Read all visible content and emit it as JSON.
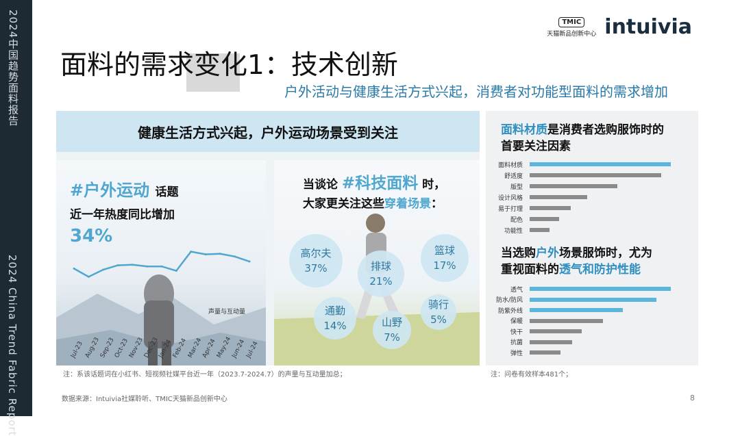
{
  "sidebar": {
    "top_text": "2024中国趋势面料报告",
    "bottom_text": "2024 China Trend Fabric Report"
  },
  "logos": {
    "tmic": "TMIC",
    "tmic_sub": "天猫新品创新中心",
    "intuivia": "intuivia"
  },
  "title": "面料的需求变化1：技术创新",
  "subtitle": "户外活动与健康生活方式兴起，消费者对功能型面料的需求增加",
  "band_title": "健康生活方式兴起，户外运动场景受到关注",
  "left_block": {
    "hashtag": "#户外运动",
    "hashtag_suffix": "话题",
    "line2": "近一年热度同比增加",
    "percent": "34%",
    "legend": "声量与互动量"
  },
  "chart_data": {
    "type": "line",
    "x": [
      "Jul-23",
      "Aug-23",
      "Sep-23",
      "Oct-23",
      "Nov-23",
      "Dec-23",
      "Jan-24",
      "Feb-24",
      "Mar-24",
      "Apr-24",
      "May-24",
      "Jun-24",
      "Jul-24"
    ],
    "series": [
      {
        "name": "声量与互动量",
        "values": [
          5.2,
          3.7,
          5.0,
          5.8,
          5.9,
          5.6,
          5.6,
          4.8,
          8.3,
          7.8,
          7.9,
          7.4,
          6.5
        ]
      }
    ],
    "ylim": [
      0,
      10
    ],
    "color": "#4fa6cf"
  },
  "middle_block": {
    "line1_pre": "当谈论",
    "line1_hl": "#科技面料",
    "line1_post": "时，",
    "line2_pre": "大家更关注这些",
    "line2_hl": "穿着场景",
    "line2_post": "：",
    "bubbles": [
      {
        "name": "高尔夫",
        "value": "37%"
      },
      {
        "name": "排球",
        "value": "21%"
      },
      {
        "name": "篮球",
        "value": "17%"
      },
      {
        "name": "通勤",
        "value": "14%"
      },
      {
        "name": "山野",
        "value": "7%"
      },
      {
        "name": "骑行",
        "value": "5%"
      }
    ]
  },
  "right_block": {
    "chart1": {
      "title_hl": "面料材质",
      "title_rest": "是消费者选购服饰时的",
      "title_line2": "首要关注因素",
      "bar_color": "#5bb5dc",
      "rest_color": "#8a8a8a",
      "labels": [
        "面料材质",
        "舒适度",
        "版型",
        "设计风格",
        "易于打理",
        "配色",
        "功能性"
      ],
      "values": [
        100,
        93,
        62,
        41,
        29,
        21,
        14
      ]
    },
    "chart2": {
      "title_pre": "当选购",
      "title_hl": "户外",
      "title_post": "场景服饰时，尤为",
      "title_line2_pre": "重视面料的",
      "title_line2_hl": "透气和防护性能",
      "bar_color": "#5bb5dc",
      "rest_color": "#8a8a8a",
      "labels": [
        "透气",
        "防水/防风",
        "防紫外线",
        "保暖",
        "快干",
        "抗菌",
        "弹性"
      ],
      "values": [
        100,
        90,
        66,
        52,
        37,
        30,
        22
      ]
    }
  },
  "notes": {
    "left": "注：系该话题词在小红书、短视频社媒平台近一年（2023.7-2024.7）的声量与互动量加总；",
    "right": "注：问卷有效样本481个；"
  },
  "source": "数据来源：Intuivia社媒聆听、TMIC天猫新品创新中心",
  "page_number": "8"
}
